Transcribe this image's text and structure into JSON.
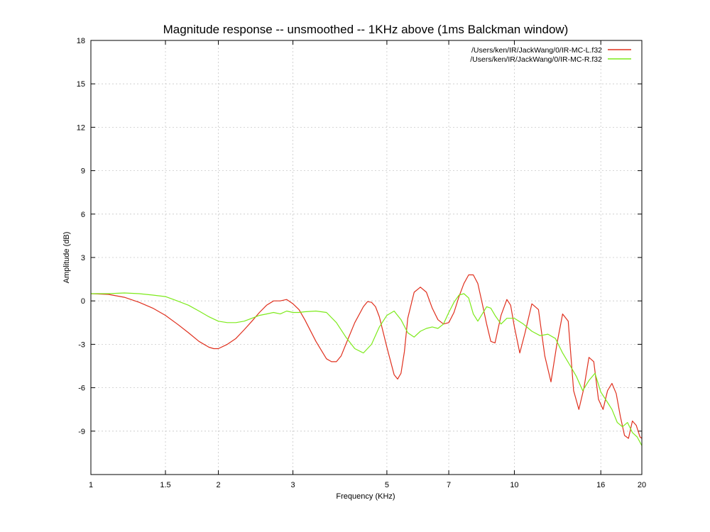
{
  "chart_data": {
    "type": "line",
    "title": "Magnitude response -- unsmoothed -- 1KHz above (1ms Balckman window)",
    "xlabel": "Frequency (KHz)",
    "ylabel": "Amplitude (dB)",
    "xscale": "log",
    "xlim": [
      1,
      20
    ],
    "ylim": [
      -12,
      18
    ],
    "x_ticks": [
      1,
      1.5,
      2,
      3,
      5,
      7,
      10,
      16,
      20
    ],
    "x_tick_labels": [
      "1",
      "1.5",
      "2",
      "3",
      "5",
      "7",
      "10",
      "16",
      "20"
    ],
    "y_ticks": [
      -9,
      -6,
      -3,
      0,
      3,
      6,
      9,
      12,
      15,
      18
    ],
    "y_tick_labels": [
      "-9",
      "-6",
      "-3",
      "0",
      "3",
      "6",
      "9",
      "12",
      "15",
      "18"
    ],
    "grid": true,
    "legend_position": "top-right",
    "series": [
      {
        "name": "/Users/ken/IR/JackWang/0/IR-MC-L.f32",
        "color": "#e0301e",
        "x": [
          1,
          1.1,
          1.2,
          1.3,
          1.4,
          1.5,
          1.6,
          1.7,
          1.8,
          1.9,
          1.95,
          2,
          2.1,
          2.2,
          2.3,
          2.4,
          2.5,
          2.6,
          2.7,
          2.8,
          2.9,
          3,
          3.1,
          3.2,
          3.4,
          3.6,
          3.7,
          3.8,
          3.9,
          4,
          4.2,
          4.4,
          4.5,
          4.6,
          4.7,
          4.8,
          5,
          5.2,
          5.3,
          5.4,
          5.5,
          5.6,
          5.8,
          6,
          6.2,
          6.4,
          6.6,
          6.8,
          7,
          7.2,
          7.4,
          7.6,
          7.8,
          8,
          8.2,
          8.4,
          8.6,
          8.8,
          9,
          9.3,
          9.6,
          9.8,
          10,
          10.3,
          10.6,
          11,
          11.4,
          11.8,
          12.2,
          12.6,
          13,
          13.4,
          13.8,
          14.2,
          14.6,
          15,
          15.4,
          15.8,
          16.2,
          16.6,
          17,
          17.4,
          17.8,
          18.2,
          18.6,
          19,
          19.4,
          19.8,
          20
        ],
        "y": [
          0.5,
          0.45,
          0.25,
          -0.1,
          -0.5,
          -1.0,
          -1.6,
          -2.2,
          -2.8,
          -3.2,
          -3.3,
          -3.3,
          -3.0,
          -2.6,
          -2.0,
          -1.4,
          -0.8,
          -0.3,
          0.0,
          0.0,
          0.1,
          -0.2,
          -0.6,
          -1.3,
          -2.8,
          -4.0,
          -4.2,
          -4.2,
          -3.8,
          -3.0,
          -1.5,
          -0.4,
          -0.05,
          -0.1,
          -0.4,
          -1.1,
          -3.2,
          -5.1,
          -5.4,
          -5.0,
          -3.5,
          -1.2,
          0.6,
          0.95,
          0.6,
          -0.5,
          -1.3,
          -1.6,
          -1.5,
          -0.8,
          0.3,
          1.2,
          1.8,
          1.8,
          1.2,
          -0.2,
          -1.6,
          -2.8,
          -2.9,
          -1.0,
          0.1,
          -0.3,
          -1.8,
          -3.6,
          -2.2,
          -0.2,
          -0.6,
          -3.8,
          -5.6,
          -3.0,
          -0.9,
          -1.4,
          -6.2,
          -7.5,
          -6.0,
          -3.9,
          -4.2,
          -6.8,
          -7.5,
          -6.2,
          -5.7,
          -6.4,
          -8.0,
          -9.3,
          -9.5,
          -8.3,
          -8.6,
          -9.4,
          -9.5
        ]
      },
      {
        "name": "/Users/ken/IR/JackWang/0/IR-MC-R.f32",
        "color": "#7dea1b",
        "x": [
          1,
          1.1,
          1.2,
          1.3,
          1.4,
          1.5,
          1.6,
          1.7,
          1.8,
          1.9,
          2,
          2.1,
          2.2,
          2.3,
          2.4,
          2.5,
          2.6,
          2.7,
          2.8,
          2.9,
          3,
          3.1,
          3.2,
          3.4,
          3.6,
          3.8,
          4,
          4.2,
          4.4,
          4.6,
          4.8,
          5,
          5.2,
          5.4,
          5.6,
          5.8,
          6,
          6.2,
          6.4,
          6.6,
          6.8,
          7,
          7.2,
          7.4,
          7.6,
          7.8,
          8,
          8.2,
          8.4,
          8.6,
          8.8,
          9,
          9.3,
          9.6,
          10,
          10.5,
          11,
          11.5,
          12,
          12.5,
          13,
          13.5,
          14,
          14.5,
          15,
          15.5,
          16,
          16.5,
          17,
          17.5,
          18,
          18.5,
          19,
          19.5,
          20
        ],
        "y": [
          0.5,
          0.5,
          0.55,
          0.5,
          0.4,
          0.3,
          0.0,
          -0.3,
          -0.7,
          -1.1,
          -1.4,
          -1.5,
          -1.5,
          -1.4,
          -1.2,
          -1.0,
          -0.9,
          -0.8,
          -0.9,
          -0.7,
          -0.8,
          -0.8,
          -0.75,
          -0.7,
          -0.8,
          -1.5,
          -2.5,
          -3.3,
          -3.6,
          -3.0,
          -1.8,
          -1.0,
          -0.7,
          -1.3,
          -2.2,
          -2.5,
          -2.1,
          -1.9,
          -1.8,
          -1.9,
          -1.6,
          -0.8,
          -0.1,
          0.4,
          0.5,
          0.2,
          -0.9,
          -1.4,
          -0.9,
          -0.4,
          -0.5,
          -1.0,
          -1.6,
          -1.2,
          -1.2,
          -1.6,
          -2.1,
          -2.4,
          -2.3,
          -2.6,
          -3.6,
          -4.4,
          -5.2,
          -6.2,
          -5.5,
          -5.0,
          -6.3,
          -6.9,
          -7.5,
          -8.4,
          -8.7,
          -8.4,
          -9.1,
          -9.4,
          -10.0
        ]
      }
    ]
  }
}
